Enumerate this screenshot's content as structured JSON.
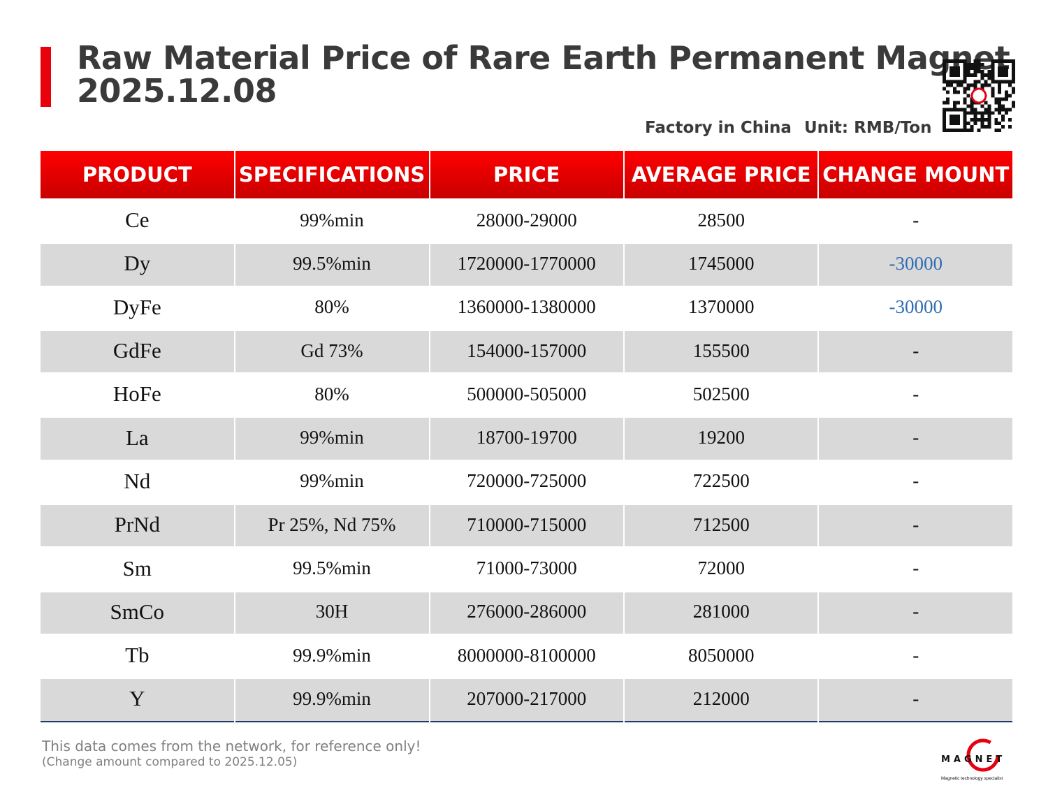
{
  "header": {
    "title_line1": "Raw Material Price of Rare Earth Permanent Magnet",
    "title_line2": "2025.12.08",
    "factory": "Factory in China",
    "unit": "Unit: RMB/Ton",
    "accent": "#e8000b"
  },
  "table": {
    "columns": [
      "PRODUCT",
      "SPECIFICATIONS",
      "PRICE",
      "AVERAGE PRICE",
      "CHANGE MOUNT"
    ],
    "rows": [
      [
        "Ce",
        "99%min",
        "28000-29000",
        "28500",
        "-"
      ],
      [
        "Dy",
        "99.5%min",
        "1720000-1770000",
        "1745000",
        "-30000"
      ],
      [
        "DyFe",
        "80%",
        "1360000-1380000",
        "1370000",
        "-30000"
      ],
      [
        "GdFe",
        "Gd 73%",
        "154000-157000",
        "155500",
        "-"
      ],
      [
        "HoFe",
        "80%",
        "500000-505000",
        "502500",
        "-"
      ],
      [
        "La",
        "99%min",
        "18700-19700",
        "19200",
        "-"
      ],
      [
        "Nd",
        "99%min",
        "720000-725000",
        "722500",
        "-"
      ],
      [
        "PrNd",
        "Pr 25%, Nd 75%",
        "710000-715000",
        "712500",
        "-"
      ],
      [
        "Sm",
        "99.5%min",
        "71000-73000",
        "72000",
        "-"
      ],
      [
        "SmCo",
        "30H",
        "276000-286000",
        "281000",
        "-"
      ],
      [
        "Tb",
        "99.9%min",
        "8000000-8100000",
        "8050000",
        "-"
      ],
      [
        "Y",
        "99.9%min",
        "207000-217000",
        "212000",
        "-"
      ]
    ]
  },
  "footer": {
    "note": "This data comes from the network, for reference only!",
    "compare": "(Change amount compared to 2025.12.05)"
  },
  "logo": {
    "text": "MAGNET",
    "tagline": "Magnetic technology specialist"
  }
}
